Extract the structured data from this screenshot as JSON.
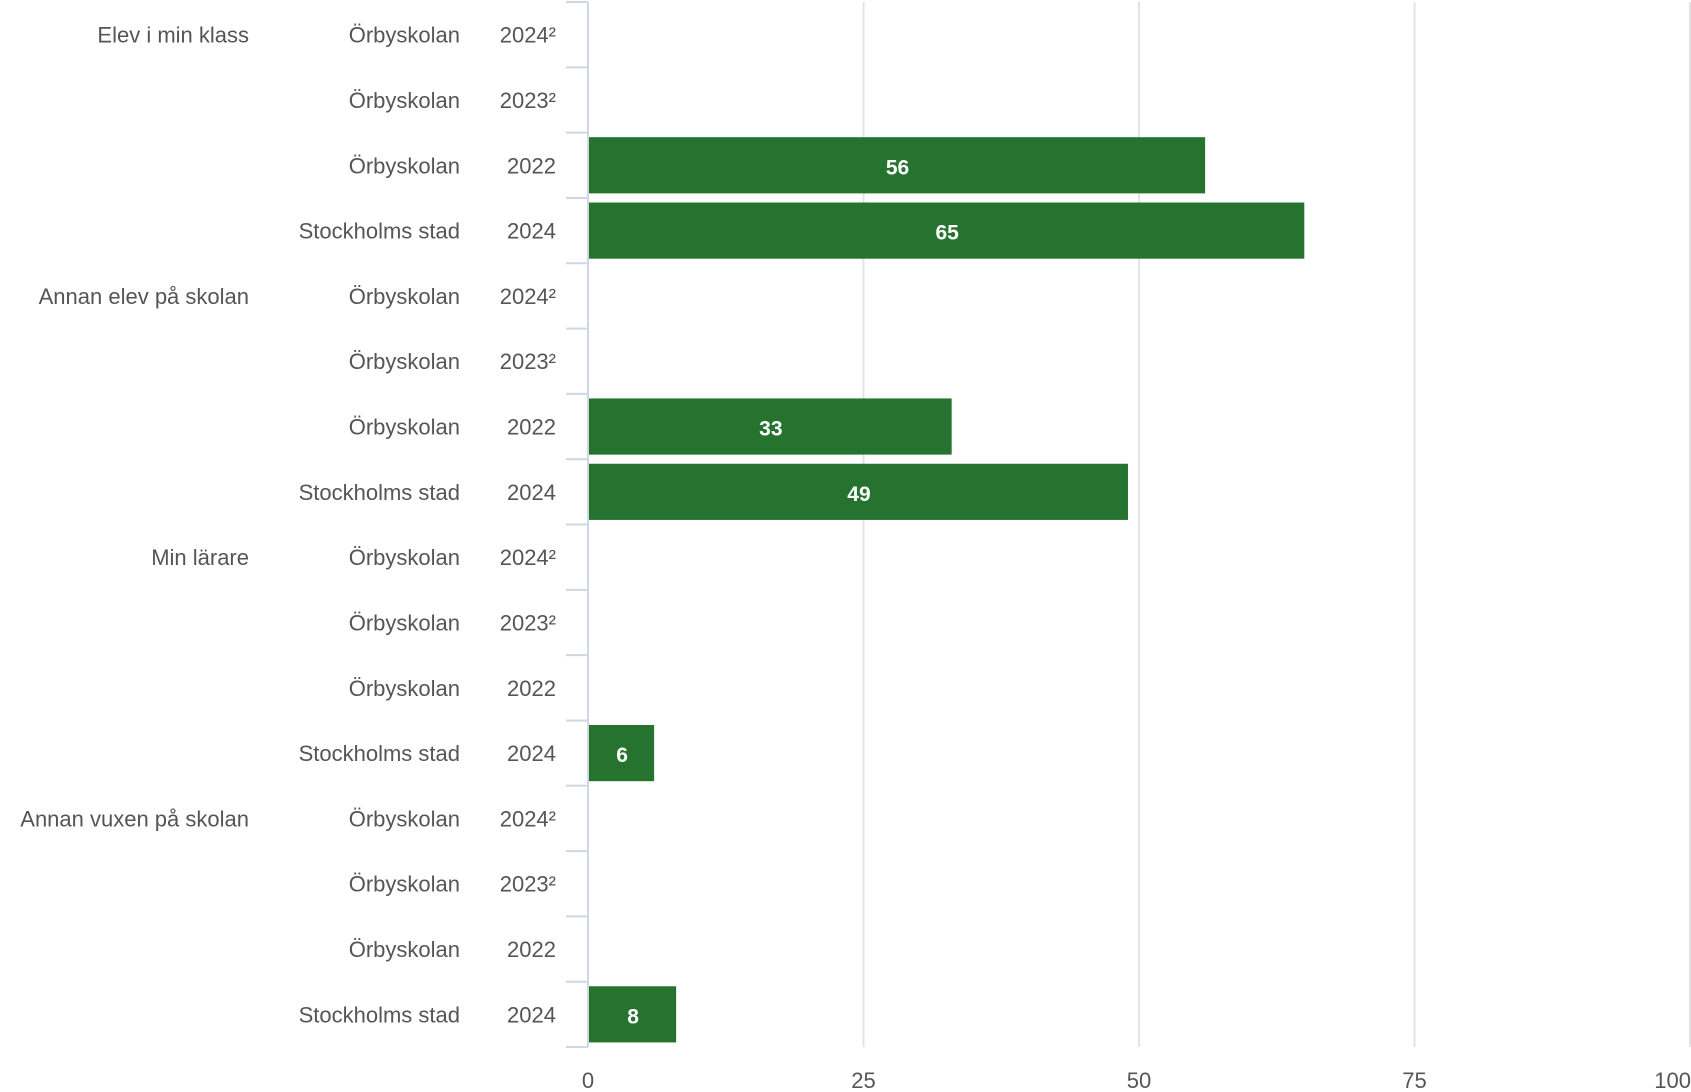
{
  "chart_data": {
    "type": "bar",
    "orientation": "horizontal",
    "xlim": [
      0,
      100
    ],
    "x_ticks": [
      "0",
      "25",
      "50",
      "75",
      "100"
    ],
    "grid": true,
    "bar_color": "#267330",
    "rows": [
      {
        "group": "Elev i min klass",
        "entity": "Örbyskolan",
        "year": "2024²",
        "value": null
      },
      {
        "group": "",
        "entity": "Örbyskolan",
        "year": "2023²",
        "value": null
      },
      {
        "group": "",
        "entity": "Örbyskolan",
        "year": "2022",
        "value": 56
      },
      {
        "group": "",
        "entity": "Stockholms stad",
        "year": "2024",
        "value": 65
      },
      {
        "group": "Annan elev på skolan",
        "entity": "Örbyskolan",
        "year": "2024²",
        "value": null
      },
      {
        "group": "",
        "entity": "Örbyskolan",
        "year": "2023²",
        "value": null
      },
      {
        "group": "",
        "entity": "Örbyskolan",
        "year": "2022",
        "value": 33
      },
      {
        "group": "",
        "entity": "Stockholms stad",
        "year": "2024",
        "value": 49
      },
      {
        "group": "Min lärare",
        "entity": "Örbyskolan",
        "year": "2024²",
        "value": null
      },
      {
        "group": "",
        "entity": "Örbyskolan",
        "year": "2023²",
        "value": null
      },
      {
        "group": "",
        "entity": "Örbyskolan",
        "year": "2022",
        "value": null
      },
      {
        "group": "",
        "entity": "Stockholms stad",
        "year": "2024",
        "value": 6
      },
      {
        "group": "Annan vuxen på skolan",
        "entity": "Örbyskolan",
        "year": "2024²",
        "value": null
      },
      {
        "group": "",
        "entity": "Örbyskolan",
        "year": "2023²",
        "value": null
      },
      {
        "group": "",
        "entity": "Örbyskolan",
        "year": "2022",
        "value": null
      },
      {
        "group": "",
        "entity": "Stockholms stad",
        "year": "2024",
        "value": 8
      }
    ]
  }
}
